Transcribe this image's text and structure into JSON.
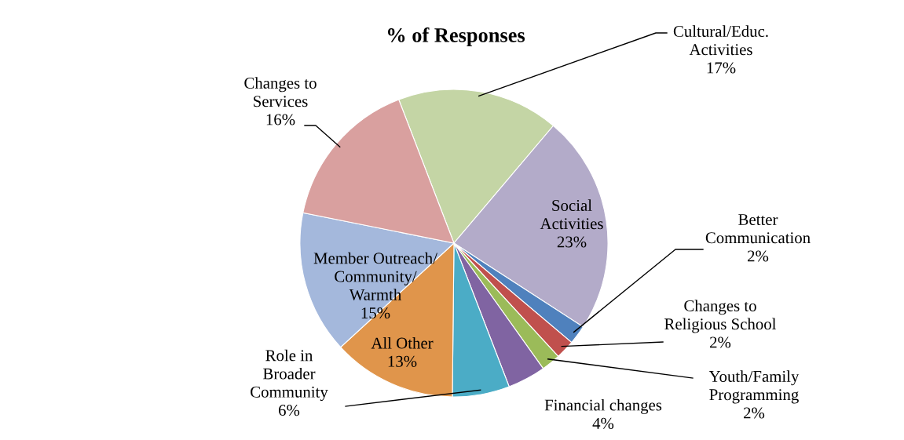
{
  "chart_data": {
    "type": "pie",
    "title": "% of Responses",
    "categories": [
      "Cultural/Educ.\nActivities",
      "Social\nActivities",
      "Better\nCommunication",
      "Changes to\nReligious School",
      "Youth/Family\nProgramming",
      "Financial changes",
      "Role in\nBroader\nCommunity",
      "All Other",
      "Member Outreach/\nCommunity/\nWarmth",
      "Changes to\nServices"
    ],
    "values": [
      17,
      23,
      2,
      2,
      2,
      4,
      6,
      13,
      15,
      16
    ],
    "value_labels": [
      "17%",
      "23%",
      "2%",
      "2%",
      "2%",
      "4%",
      "6%",
      "13%",
      "15%",
      "16%"
    ],
    "colors": [
      "#c4d5a5",
      "#b3abc9",
      "#4f81bd",
      "#c0504d",
      "#9bbb59",
      "#8064a2",
      "#4bacc6",
      "#e0954b",
      "#a4b8dc",
      "#d9a09f"
    ],
    "legend": false
  }
}
